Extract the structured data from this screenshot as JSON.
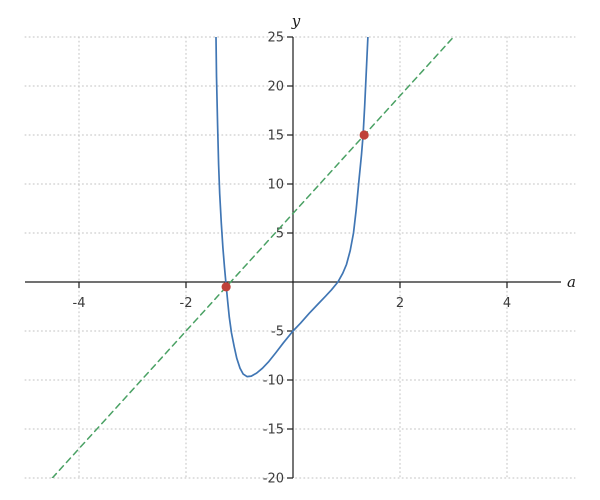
{
  "figure": {
    "background": "#ffffff",
    "axis_color": "#1c1c1c",
    "grid_color": "#c2c2c2",
    "tick_label_color": "#3b3b3b"
  },
  "chart_data": {
    "type": "line",
    "title": "",
    "xlabel": "a",
    "ylabel": "y",
    "xlim": [
      -5,
      5
    ],
    "ylim": [
      -20,
      25
    ],
    "x_ticks": [
      -4,
      -2,
      2,
      4
    ],
    "y_ticks": [
      25,
      20,
      15,
      10,
      5,
      -5,
      -10,
      -15,
      -20
    ],
    "grid": {
      "visible": true,
      "style": "dotted"
    },
    "legend": "none",
    "series": [
      {
        "name": "curve",
        "type": "line",
        "style": "solid",
        "color": "#4076b4",
        "points": [
          [
            -1.44,
            25.0
          ],
          [
            -1.43,
            21.0
          ],
          [
            -1.41,
            16.0
          ],
          [
            -1.39,
            12.0
          ],
          [
            -1.37,
            9.0
          ],
          [
            -1.34,
            6.0
          ],
          [
            -1.31,
            3.5
          ],
          [
            -1.28,
            1.5
          ],
          [
            -1.25,
            -0.3
          ],
          [
            -1.22,
            -2.0
          ],
          [
            -1.19,
            -3.6
          ],
          [
            -1.15,
            -5.2
          ],
          [
            -1.1,
            -6.6
          ],
          [
            -1.05,
            -7.8
          ],
          [
            -0.99,
            -8.8
          ],
          [
            -0.93,
            -9.4
          ],
          [
            -0.86,
            -9.65
          ],
          [
            -0.78,
            -9.6
          ],
          [
            -0.68,
            -9.3
          ],
          [
            -0.57,
            -8.8
          ],
          [
            -0.45,
            -8.1
          ],
          [
            -0.32,
            -7.2
          ],
          [
            -0.18,
            -6.2
          ],
          [
            0.0,
            -5.0
          ],
          [
            0.14,
            -4.2
          ],
          [
            0.3,
            -3.2
          ],
          [
            0.46,
            -2.3
          ],
          [
            0.6,
            -1.5
          ],
          [
            0.72,
            -0.8
          ],
          [
            0.84,
            0.0
          ],
          [
            0.93,
            0.9
          ],
          [
            1.0,
            1.8
          ],
          [
            1.07,
            3.2
          ],
          [
            1.13,
            5.0
          ],
          [
            1.18,
            7.3
          ],
          [
            1.23,
            10.2
          ],
          [
            1.28,
            13.0
          ],
          [
            1.31,
            15.0
          ],
          [
            1.34,
            18.0
          ],
          [
            1.37,
            21.5
          ],
          [
            1.4,
            25.0
          ]
        ]
      },
      {
        "name": "dashed-line",
        "type": "line",
        "style": "dashed",
        "color": "#4aa164",
        "points": [
          [
            -4.5,
            -20
          ],
          [
            3.0,
            25
          ]
        ]
      },
      {
        "name": "intersection-points",
        "type": "scatter",
        "color": "#c0413a",
        "marker_radius": 4.6,
        "points": [
          [
            -1.25,
            -0.5
          ],
          [
            1.33,
            15.0
          ]
        ]
      }
    ]
  }
}
